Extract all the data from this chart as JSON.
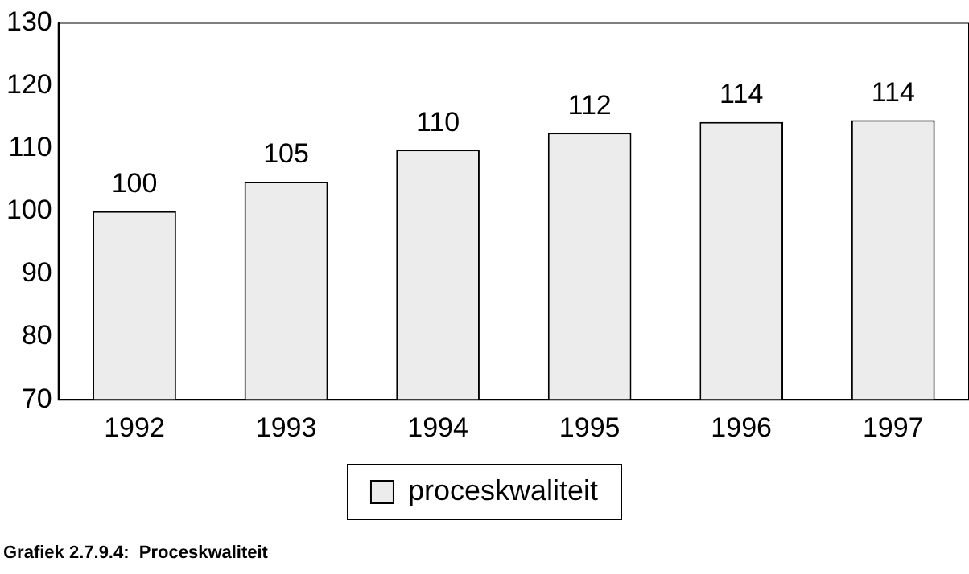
{
  "chart_data": {
    "type": "bar",
    "categories": [
      "1992",
      "1993",
      "1994",
      "1995",
      "1996",
      "1997"
    ],
    "series": [
      {
        "name": "proceskwaliteit",
        "color": "#ececec",
        "values": [
          100,
          104.7,
          109.8,
          112.5,
          114.2,
          114.5
        ],
        "value_labels": [
          "100",
          "105",
          "110",
          "112",
          "114",
          "114"
        ]
      }
    ],
    "ylim": [
      70,
      130
    ],
    "yticks": [
      70,
      80,
      90,
      100,
      110,
      120,
      130
    ],
    "grid": false,
    "legend": "bottom",
    "annotations": [
      "Grafiek 2.7.9.4:  Proceskwaliteit"
    ]
  }
}
